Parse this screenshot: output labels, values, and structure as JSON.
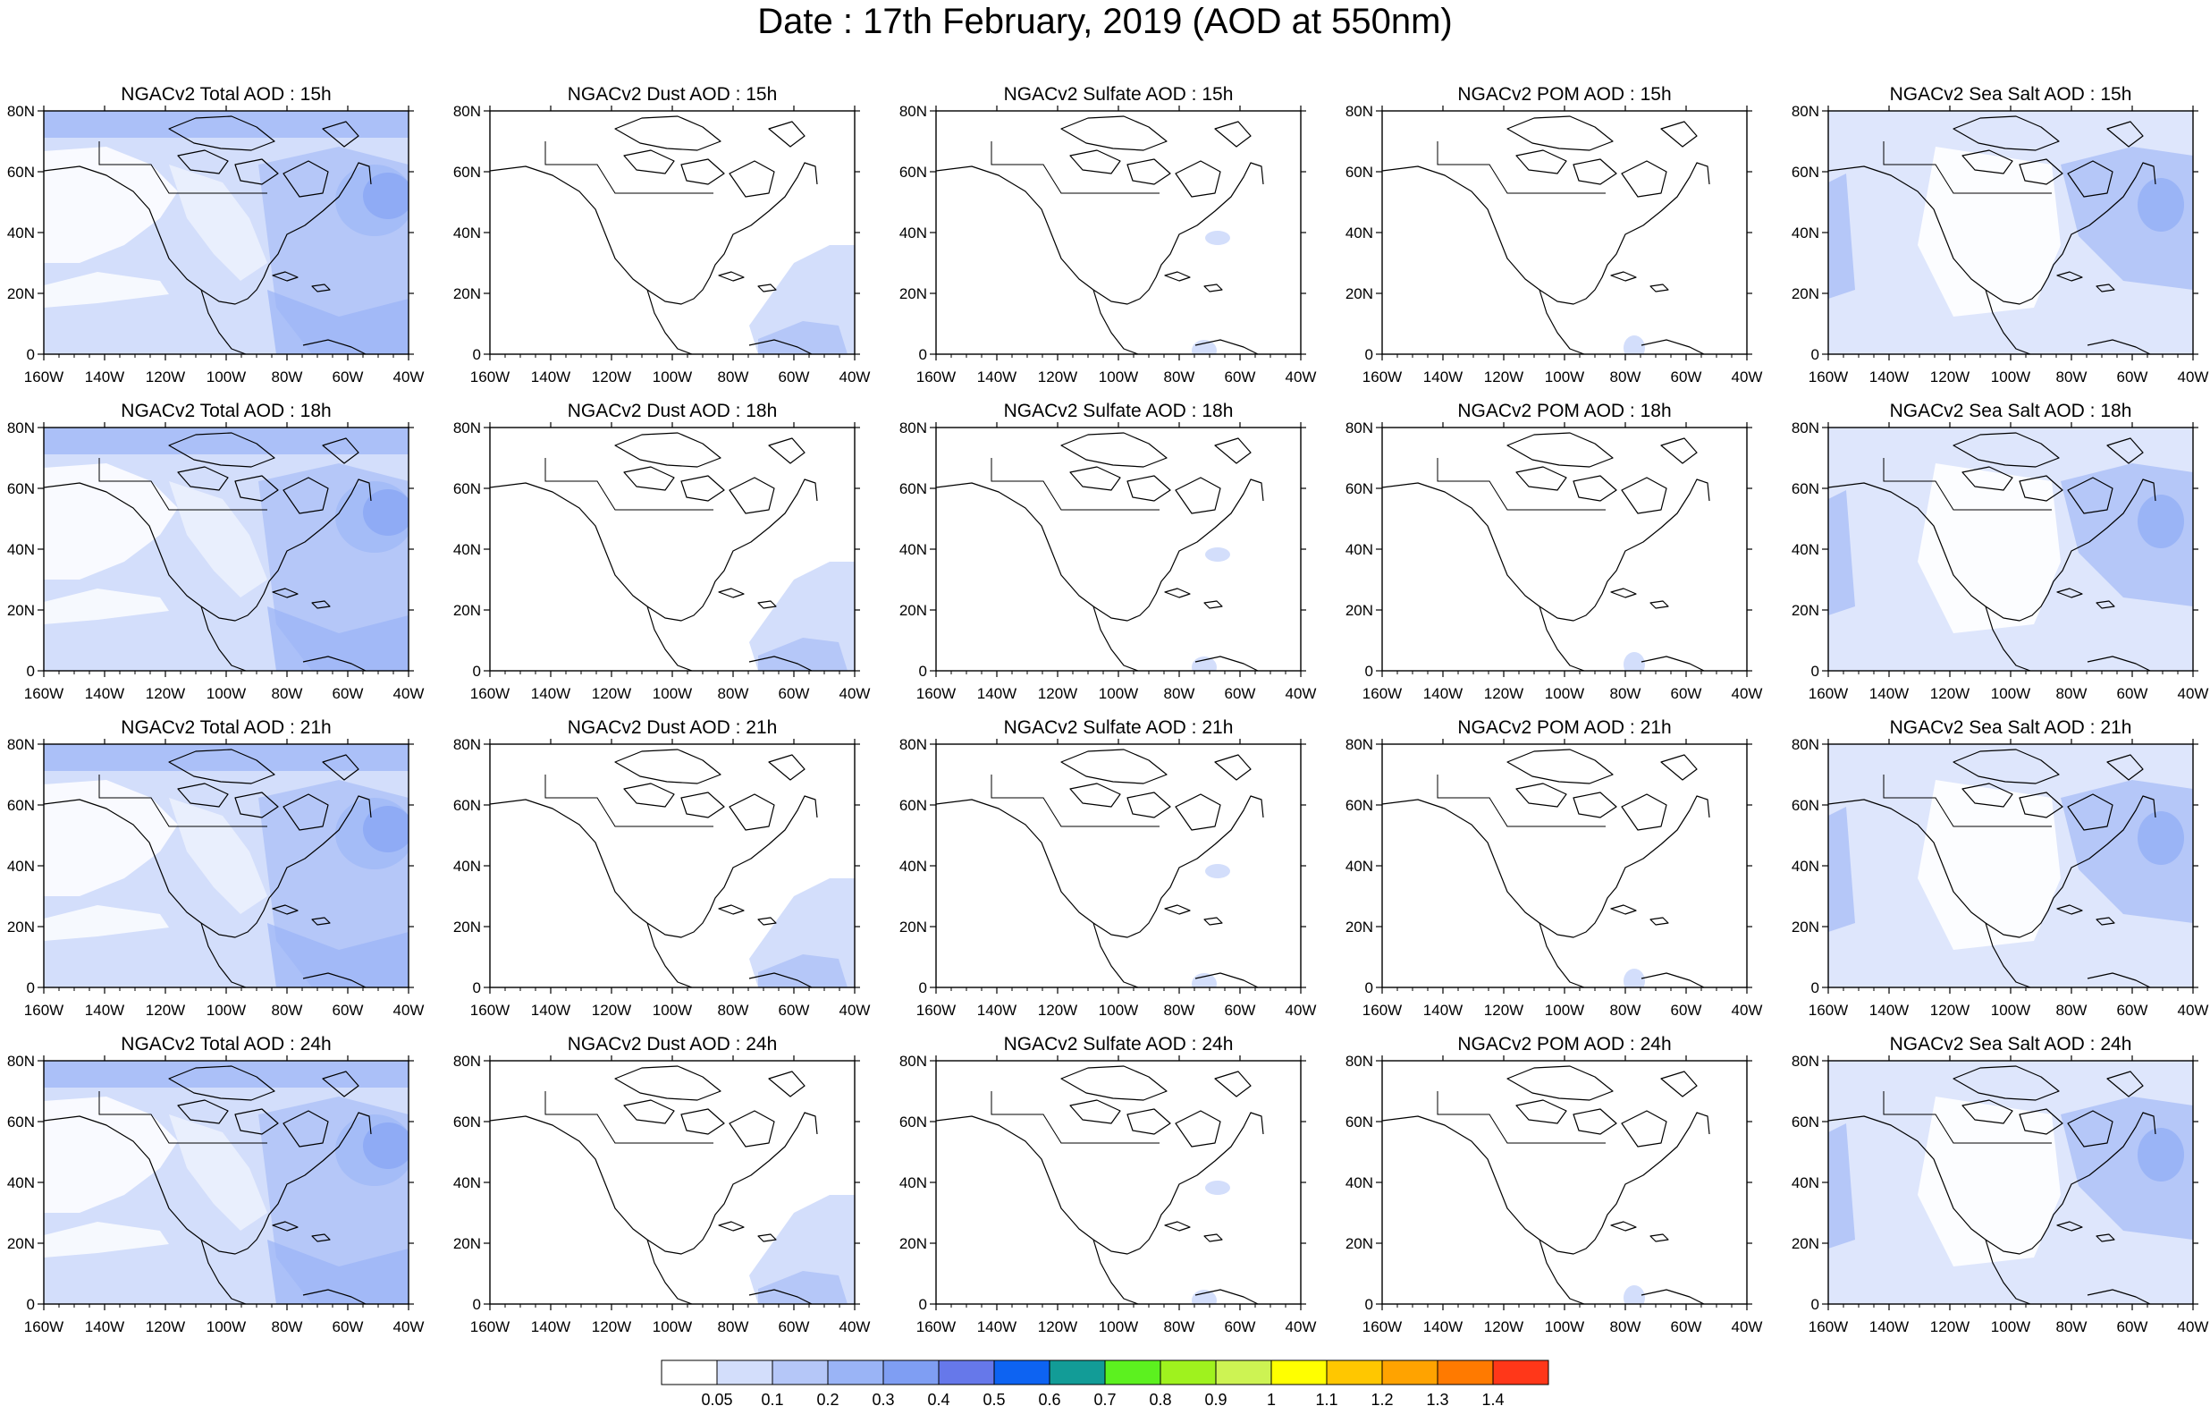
{
  "figure": {
    "title": "Date : 17th February, 2019 (AOD at 550nm)"
  },
  "chart_data": {
    "type": "heatmap",
    "variable": "AOD at 550nm",
    "date": "17th February, 2019",
    "columns": [
      "Total",
      "Dust",
      "Sulfate",
      "POM",
      "Sea Salt"
    ],
    "rows": [
      "15h",
      "18h",
      "21h",
      "24h"
    ],
    "panels": [
      {
        "title": "NGACv2 Total AOD : 15h"
      },
      {
        "title": "NGACv2 Dust AOD : 15h"
      },
      {
        "title": "NGACv2 Sulfate AOD : 15h"
      },
      {
        "title": "NGACv2 POM AOD : 15h"
      },
      {
        "title": "NGACv2 Sea Salt AOD : 15h"
      },
      {
        "title": "NGACv2 Total AOD : 18h"
      },
      {
        "title": "NGACv2 Dust AOD : 18h"
      },
      {
        "title": "NGACv2 Sulfate AOD : 18h"
      },
      {
        "title": "NGACv2 POM AOD : 18h"
      },
      {
        "title": "NGACv2 Sea Salt AOD : 18h"
      },
      {
        "title": "NGACv2 Total AOD : 21h"
      },
      {
        "title": "NGACv2 Dust AOD : 21h"
      },
      {
        "title": "NGACv2 Sulfate AOD : 21h"
      },
      {
        "title": "NGACv2 POM AOD : 21h"
      },
      {
        "title": "NGACv2 Sea Salt AOD : 21h"
      },
      {
        "title": "NGACv2 Total AOD : 24h"
      },
      {
        "title": "NGACv2 Dust AOD : 24h"
      },
      {
        "title": "NGACv2 Sulfate AOD : 24h"
      },
      {
        "title": "NGACv2 POM AOD : 24h"
      },
      {
        "title": "NGACv2 Sea Salt  AOD : 24h"
      }
    ],
    "x_ticks": [
      "160W",
      "140W",
      "120W",
      "100W",
      "80W",
      "60W",
      "40W"
    ],
    "y_ticks": [
      "0",
      "20N",
      "40N",
      "60N",
      "80N"
    ],
    "xlim": [
      -160,
      -40
    ],
    "ylim": [
      0,
      80
    ],
    "colorbar": {
      "labels": [
        "0.05",
        "0.1",
        "0.2",
        "0.3",
        "0.4",
        "0.5",
        "0.6",
        "0.7",
        "0.8",
        "0.9",
        "1",
        "1.1",
        "1.2",
        "1.3",
        "1.4"
      ],
      "colors": [
        "#ffffff",
        "#d3defb",
        "#b5c7f8",
        "#9ab4f6",
        "#7f9ef3",
        "#6678ea",
        "#0d63f2",
        "#129c97",
        "#5cf11f",
        "#9ff21e",
        "#cdf353",
        "#ffff00",
        "#ffc700",
        "#ffa300",
        "#ff7a00",
        "#ff3719"
      ]
    }
  }
}
